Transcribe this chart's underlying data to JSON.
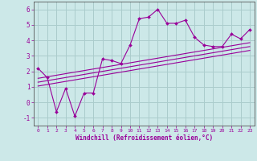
{
  "xlabel": "Windchill (Refroidissement éolien,°C)",
  "bg_color": "#cce8e8",
  "grid_color": "#aacccc",
  "line_color": "#990099",
  "xlim": [
    -0.5,
    23.5
  ],
  "ylim": [
    -1.5,
    6.5
  ],
  "xticks": [
    0,
    1,
    2,
    3,
    4,
    5,
    6,
    7,
    8,
    9,
    10,
    11,
    12,
    13,
    14,
    15,
    16,
    17,
    18,
    19,
    20,
    21,
    22,
    23
  ],
  "yticks": [
    -1,
    0,
    1,
    2,
    3,
    4,
    5,
    6
  ],
  "main_x": [
    0,
    1,
    2,
    3,
    4,
    5,
    6,
    7,
    8,
    9,
    10,
    11,
    12,
    13,
    14,
    15,
    16,
    17,
    18,
    19,
    20,
    21,
    22,
    23
  ],
  "main_y": [
    2.2,
    1.6,
    -0.6,
    0.9,
    -0.9,
    0.6,
    0.6,
    2.8,
    2.7,
    2.5,
    3.7,
    5.4,
    5.5,
    6.0,
    5.1,
    5.1,
    5.3,
    4.2,
    3.7,
    3.6,
    3.6,
    4.4,
    4.1,
    4.7
  ],
  "line1_x": [
    0,
    23
  ],
  "line1_y": [
    1.55,
    3.85
  ],
  "line2_x": [
    0,
    23
  ],
  "line2_y": [
    1.3,
    3.6
  ],
  "line3_x": [
    0,
    23
  ],
  "line3_y": [
    1.05,
    3.35
  ]
}
